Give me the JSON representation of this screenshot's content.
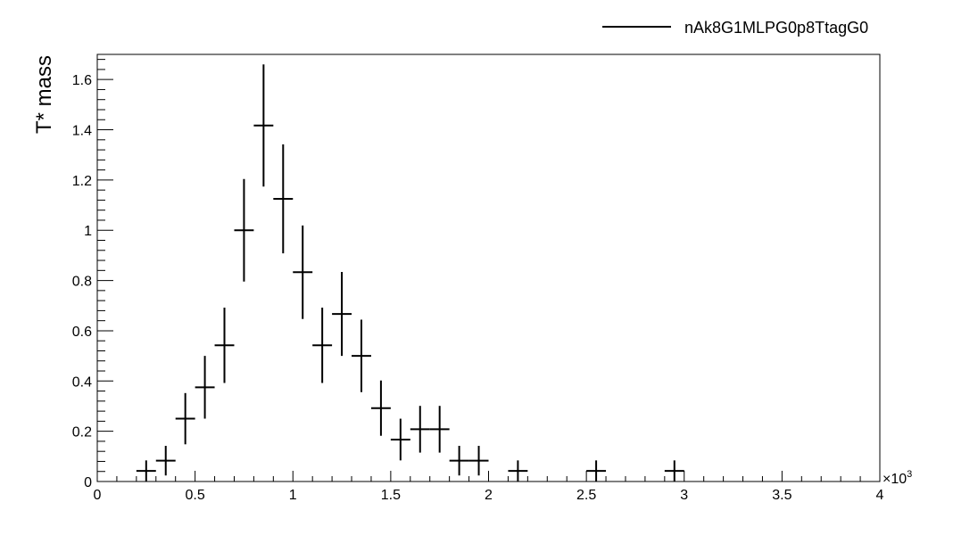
{
  "chart_data": {
    "type": "scatter",
    "ylabel": "T* mass",
    "xlabel": "",
    "xlim": [
      0,
      4
    ],
    "ylim": [
      0,
      1.7
    ],
    "x_exponent_label": "×10",
    "x_exponent_power": "3",
    "x_ticks": [
      "0",
      "0.5",
      "1",
      "1.5",
      "2",
      "2.5",
      "3",
      "3.5",
      "4"
    ],
    "y_ticks": [
      "0",
      "0.2",
      "0.4",
      "0.6",
      "0.8",
      "1",
      "1.2",
      "1.4",
      "1.6"
    ],
    "legend_position": "top-right",
    "grid": false,
    "series": [
      {
        "name": "nAk8G1MLPG0p8TtagG0",
        "color": "#000000",
        "bin_width": 0.1,
        "points": [
          {
            "x": 0.25,
            "y": 0.042,
            "err": 0.042
          },
          {
            "x": 0.35,
            "y": 0.083,
            "err": 0.059
          },
          {
            "x": 0.45,
            "y": 0.25,
            "err": 0.102
          },
          {
            "x": 0.55,
            "y": 0.375,
            "err": 0.125
          },
          {
            "x": 0.65,
            "y": 0.542,
            "err": 0.15
          },
          {
            "x": 0.75,
            "y": 1.0,
            "err": 0.204
          },
          {
            "x": 0.85,
            "y": 1.417,
            "err": 0.243
          },
          {
            "x": 0.95,
            "y": 1.125,
            "err": 0.217
          },
          {
            "x": 1.05,
            "y": 0.833,
            "err": 0.186
          },
          {
            "x": 1.15,
            "y": 0.542,
            "err": 0.15
          },
          {
            "x": 1.25,
            "y": 0.667,
            "err": 0.167
          },
          {
            "x": 1.35,
            "y": 0.5,
            "err": 0.144
          },
          {
            "x": 1.45,
            "y": 0.292,
            "err": 0.11
          },
          {
            "x": 1.55,
            "y": 0.167,
            "err": 0.083
          },
          {
            "x": 1.65,
            "y": 0.208,
            "err": 0.093
          },
          {
            "x": 1.75,
            "y": 0.208,
            "err": 0.093
          },
          {
            "x": 1.85,
            "y": 0.083,
            "err": 0.059
          },
          {
            "x": 1.95,
            "y": 0.083,
            "err": 0.059
          },
          {
            "x": 2.15,
            "y": 0.042,
            "err": 0.042
          },
          {
            "x": 2.55,
            "y": 0.042,
            "err": 0.042
          },
          {
            "x": 2.95,
            "y": 0.042,
            "err": 0.042
          }
        ]
      }
    ]
  }
}
